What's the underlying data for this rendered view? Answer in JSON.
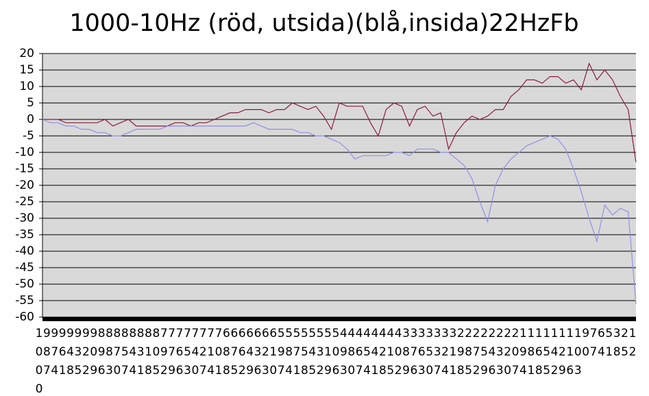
{
  "chart_data": {
    "type": "line",
    "title": "1000-10Hz (röd, utsida)(blå,insida)22HzFb",
    "categories": [
      "1000",
      "987",
      "974",
      "961",
      "948",
      "935",
      "922",
      "909",
      "896",
      "883",
      "870",
      "857",
      "844",
      "831",
      "818",
      "805",
      "792",
      "779",
      "766",
      "753",
      "740",
      "727",
      "714",
      "701",
      "688",
      "675",
      "662",
      "649",
      "636",
      "623",
      "610",
      "597",
      "584",
      "571",
      "558",
      "545",
      "532",
      "519",
      "506",
      "493",
      "480",
      "467",
      "454",
      "441",
      "428",
      "415",
      "402",
      "389",
      "376",
      "363",
      "350",
      "337",
      "324",
      "311",
      "298",
      "285",
      "272",
      "259",
      "246",
      "233",
      "220",
      "207",
      "194",
      "181",
      "168",
      "155",
      "142",
      "129",
      "116",
      "103",
      "90",
      "77",
      "64",
      "51",
      "38",
      "25",
      "12"
    ],
    "series": [
      {
        "color": "#8b1a3a",
        "values": [
          0,
          0,
          0,
          -1,
          -1,
          -1,
          -1,
          -1,
          0,
          -2,
          -1,
          0,
          -2,
          -2,
          -2,
          -2,
          -2,
          -1,
          -1,
          -2,
          -1,
          -1,
          0,
          1,
          2,
          2,
          3,
          3,
          3,
          2,
          3,
          3,
          5,
          4,
          3,
          4,
          1,
          -3,
          5,
          4,
          4,
          4,
          -1,
          -5,
          3,
          5,
          4,
          -2,
          3,
          4,
          1,
          2,
          -9,
          -4,
          -1,
          1,
          0,
          1,
          3,
          3,
          7,
          9,
          12,
          12,
          11,
          13,
          13,
          11,
          12,
          9,
          17,
          12,
          15,
          12,
          7,
          3,
          -13
        ]
      },
      {
        "color": "#8f8fe8",
        "values": [
          0,
          -1,
          -1,
          -2,
          -2,
          -3,
          -3,
          -4,
          -4,
          -5,
          -5,
          -4,
          -3,
          -3,
          -3,
          -3,
          -2,
          -2,
          -2,
          -2,
          -2,
          -2,
          -2,
          -2,
          -2,
          -2,
          -2,
          -1,
          -2,
          -3,
          -3,
          -3,
          -3,
          -4,
          -4,
          -5,
          -5,
          -6,
          -7,
          -9,
          -12,
          -11,
          -11,
          -11,
          -11,
          -10,
          -10,
          -11,
          -9,
          -9,
          -9,
          -10,
          -10,
          -12,
          -14,
          -18,
          -25,
          -31,
          -20,
          -15,
          -12,
          -10,
          -8,
          -7,
          -6,
          -5,
          -6,
          -9,
          -15,
          -22,
          -30,
          -37,
          -26,
          -29,
          -27,
          -28,
          -56
        ]
      }
    ],
    "ylim": [
      -60,
      20
    ],
    "yticks": [
      -60,
      -55,
      -50,
      -45,
      -40,
      -35,
      -30,
      -25,
      -20,
      -15,
      -10,
      -5,
      0,
      5,
      10,
      15,
      20
    ],
    "grid": true
  }
}
